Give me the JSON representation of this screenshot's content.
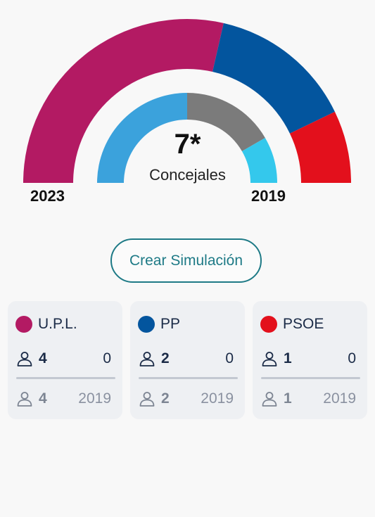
{
  "gauge": {
    "total_label": "7*",
    "caption": "Concejales",
    "left_year": "2023",
    "right_year": "2019",
    "outer_segments": [
      {
        "party": "U.P.L.",
        "seats": 4,
        "color": "#b31a63"
      },
      {
        "party": "PP",
        "seats": 2,
        "color": "#03559e"
      },
      {
        "party": "PSOE",
        "seats": 1,
        "color": "#e3101c"
      }
    ],
    "inner_segments": [
      {
        "seats": 3,
        "color": "#3ba2dc"
      },
      {
        "seats": 2,
        "color": "#7b7b7b"
      },
      {
        "seats": 1,
        "color": "#34c8ec"
      }
    ]
  },
  "simulation_button": {
    "label": "Crear Simulación"
  },
  "parties": [
    {
      "name": "U.P.L.",
      "color": "#b31a63",
      "seats": "4",
      "diff": "0",
      "prev_seats": "4",
      "prev_year": "2019"
    },
    {
      "name": "PP",
      "color": "#03559e",
      "seats": "2",
      "diff": "0",
      "prev_seats": "2",
      "prev_year": "2019"
    },
    {
      "name": "PSOE",
      "color": "#e3101c",
      "seats": "1",
      "diff": "0",
      "prev_seats": "1",
      "prev_year": "2019"
    }
  ]
}
